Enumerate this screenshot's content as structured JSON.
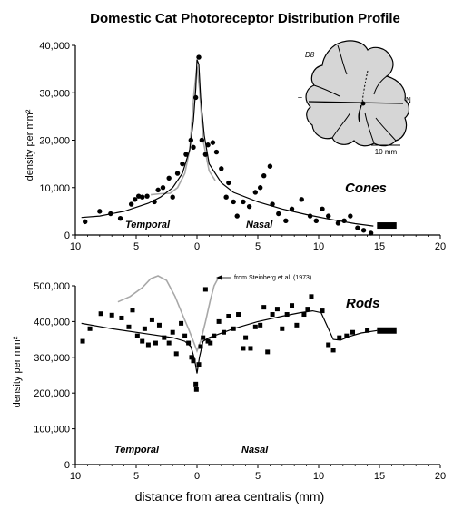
{
  "title": "Domestic Cat Photoreceptor Distribution Profile",
  "chart_data": [
    {
      "type": "scatter",
      "series_name": "Cones",
      "ylabel": "density per mm²",
      "xlabel": "",
      "xlim": [
        -10,
        20
      ],
      "ylim": [
        0,
        40000
      ],
      "x_ticks": [
        "10",
        "5",
        "0",
        "5",
        "10",
        "15",
        "20"
      ],
      "y_ticks": [
        "0",
        "10,000",
        "20,000",
        "30,000",
        "40,000"
      ],
      "region_labels": {
        "left": "Temporal",
        "right": "Nasal"
      },
      "inset": {
        "label": "D8",
        "temporal": "T",
        "nasal": "N",
        "scale_label": "10 mm"
      },
      "points": [
        [
          -9.2,
          2800
        ],
        [
          -8,
          5000
        ],
        [
          -7.1,
          4500
        ],
        [
          -6.3,
          3500
        ],
        [
          -5.4,
          6500
        ],
        [
          -5.1,
          7500
        ],
        [
          -4.8,
          8200
        ],
        [
          -4.5,
          8000
        ],
        [
          -4.1,
          8200
        ],
        [
          -3.5,
          7000
        ],
        [
          -3.2,
          9500
        ],
        [
          -2.8,
          10000
        ],
        [
          -2.3,
          12000
        ],
        [
          -2,
          8000
        ],
        [
          -1.6,
          13000
        ],
        [
          -1.2,
          15000
        ],
        [
          -0.9,
          17000
        ],
        [
          -0.5,
          20000
        ],
        [
          -0.3,
          18500
        ],
        [
          -0.1,
          29000
        ],
        [
          0.15,
          37500
        ],
        [
          0.4,
          20000
        ],
        [
          0.7,
          17000
        ],
        [
          0.9,
          19000
        ],
        [
          1.3,
          19500
        ],
        [
          1.6,
          17500
        ],
        [
          2,
          14000
        ],
        [
          2.6,
          11000
        ],
        [
          2.4,
          8000
        ],
        [
          3,
          7000
        ],
        [
          3.3,
          4000
        ],
        [
          3.8,
          7000
        ],
        [
          4.3,
          6000
        ],
        [
          4.8,
          9000
        ],
        [
          5.2,
          10000
        ],
        [
          5.5,
          12500
        ],
        [
          6,
          14500
        ],
        [
          6.2,
          6500
        ],
        [
          6.7,
          4500
        ],
        [
          7.3,
          3000
        ],
        [
          7.8,
          5500
        ],
        [
          8.6,
          7500
        ],
        [
          9.3,
          4000
        ],
        [
          9.8,
          3000
        ],
        [
          10.3,
          5500
        ],
        [
          10.8,
          4000
        ],
        [
          11.6,
          2500
        ],
        [
          12.1,
          3000
        ],
        [
          12.6,
          4000
        ],
        [
          13.2,
          1500
        ],
        [
          13.7,
          1000
        ],
        [
          14.3,
          400
        ]
      ],
      "fit_line": [
        [
          -9.5,
          3700
        ],
        [
          -8,
          4000
        ],
        [
          -6,
          5000
        ],
        [
          -4,
          6700
        ],
        [
          -3,
          8000
        ],
        [
          -2,
          10000
        ],
        [
          -1.2,
          13000
        ],
        [
          -0.6,
          18000
        ],
        [
          -0.3,
          24000
        ],
        [
          -0.1,
          31000
        ],
        [
          0,
          37000
        ],
        [
          0.15,
          36000
        ],
        [
          0.3,
          29000
        ],
        [
          0.6,
          21000
        ],
        [
          1,
          15000
        ],
        [
          2,
          11000
        ],
        [
          3,
          9000
        ],
        [
          5,
          7000
        ],
        [
          7,
          5500
        ],
        [
          9,
          4300
        ],
        [
          11,
          3300
        ],
        [
          13,
          2400
        ],
        [
          14.5,
          1900
        ]
      ],
      "comparison_line": [
        [
          -3.8,
          8500
        ],
        [
          -3,
          8700
        ],
        [
          -2.2,
          8800
        ],
        [
          -1.6,
          10000
        ],
        [
          -1,
          13000
        ],
        [
          -0.6,
          18000
        ],
        [
          -0.25,
          30000
        ],
        [
          0,
          35500
        ],
        [
          0.2,
          31000
        ],
        [
          0.5,
          20000
        ],
        [
          1,
          13500
        ],
        [
          1.5,
          11500
        ]
      ],
      "end_bar": [
        14.8,
        16.4,
        2000
      ]
    },
    {
      "type": "scatter",
      "series_name": "Rods",
      "ylabel": "density per mm²",
      "xlabel": "distance from area centralis (mm)",
      "xlim": [
        -10,
        20
      ],
      "ylim": [
        0,
        500000
      ],
      "x_ticks": [
        "10",
        "5",
        "0",
        "5",
        "10",
        "15",
        "20"
      ],
      "y_ticks": [
        "0",
        "100,000",
        "200,000",
        "300,000",
        "400,000",
        "500,000"
      ],
      "region_labels": {
        "left": "Temporal",
        "right": "Nasal"
      },
      "annotation": "from Steinberg et al. (1973)",
      "points": [
        [
          -9.4,
          345000
        ],
        [
          -8.8,
          380000
        ],
        [
          -7.9,
          422000
        ],
        [
          -7,
          418000
        ],
        [
          -6.2,
          410000
        ],
        [
          -5.6,
          385000
        ],
        [
          -5.3,
          432000
        ],
        [
          -4.9,
          360000
        ],
        [
          -4.5,
          345000
        ],
        [
          -4.3,
          380000
        ],
        [
          -4,
          335000
        ],
        [
          -3.7,
          405000
        ],
        [
          -3.4,
          340000
        ],
        [
          -3.1,
          390000
        ],
        [
          -2.7,
          355000
        ],
        [
          -2.3,
          340000
        ],
        [
          -2,
          370000
        ],
        [
          -1.7,
          310000
        ],
        [
          -1.3,
          395000
        ],
        [
          -1,
          360000
        ],
        [
          -0.7,
          340000
        ],
        [
          -0.45,
          300000
        ],
        [
          -0.3,
          290000
        ],
        [
          -0.1,
          225000
        ],
        [
          -0.05,
          210000
        ],
        [
          0.15,
          280000
        ],
        [
          0.3,
          330000
        ],
        [
          0.5,
          355000
        ],
        [
          0.7,
          490000
        ],
        [
          0.9,
          345000
        ],
        [
          1.1,
          340000
        ],
        [
          1.4,
          360000
        ],
        [
          1.8,
          400000
        ],
        [
          2.2,
          370000
        ],
        [
          2.6,
          415000
        ],
        [
          3,
          380000
        ],
        [
          3.4,
          420000
        ],
        [
          3.8,
          325000
        ],
        [
          4,
          355000
        ],
        [
          4.4,
          325000
        ],
        [
          4.8,
          385000
        ],
        [
          5.2,
          390000
        ],
        [
          5.5,
          440000
        ],
        [
          5.8,
          315000
        ],
        [
          6.2,
          420000
        ],
        [
          6.6,
          435000
        ],
        [
          7,
          380000
        ],
        [
          7.4,
          420000
        ],
        [
          7.8,
          445000
        ],
        [
          8.2,
          390000
        ],
        [
          8.8,
          420000
        ],
        [
          9.1,
          435000
        ],
        [
          9.4,
          470000
        ],
        [
          10.3,
          430000
        ],
        [
          10.8,
          335000
        ],
        [
          11.2,
          320000
        ],
        [
          11.7,
          355000
        ],
        [
          12.3,
          360000
        ],
        [
          12.8,
          370000
        ],
        [
          14,
          375000
        ]
      ],
      "fit_line": [
        [
          -9.5,
          395000
        ],
        [
          -7,
          380000
        ],
        [
          -4,
          365000
        ],
        [
          -2,
          355000
        ],
        [
          -1,
          345000
        ],
        [
          -0.5,
          330000
        ],
        [
          -0.2,
          295000
        ],
        [
          0,
          255000
        ],
        [
          0.2,
          300000
        ],
        [
          0.5,
          345000
        ],
        [
          1,
          355000
        ],
        [
          3,
          380000
        ],
        [
          5,
          400000
        ],
        [
          7,
          415000
        ],
        [
          8.5,
          425000
        ],
        [
          9.5,
          430000
        ],
        [
          10.2,
          425000
        ],
        [
          10.8,
          380000
        ],
        [
          11.2,
          350000
        ],
        [
          11.8,
          348000
        ],
        [
          12.5,
          358000
        ],
        [
          13.5,
          368000
        ],
        [
          14.8,
          375000
        ]
      ],
      "comparison_line": [
        [
          -6.5,
          455000
        ],
        [
          -5.5,
          470000
        ],
        [
          -4.5,
          495000
        ],
        [
          -3.8,
          520000
        ],
        [
          -3.2,
          528000
        ],
        [
          -2.5,
          515000
        ],
        [
          -1.8,
          470000
        ],
        [
          -1.2,
          420000
        ],
        [
          -0.7,
          380000
        ],
        [
          -0.3,
          345000
        ],
        [
          0,
          318000
        ],
        [
          0.3,
          345000
        ],
        [
          0.7,
          400000
        ],
        [
          1.1,
          460000
        ],
        [
          1.4,
          500000
        ],
        [
          1.8,
          525000
        ]
      ],
      "end_bar": [
        14.8,
        16.4,
        375000
      ]
    }
  ]
}
